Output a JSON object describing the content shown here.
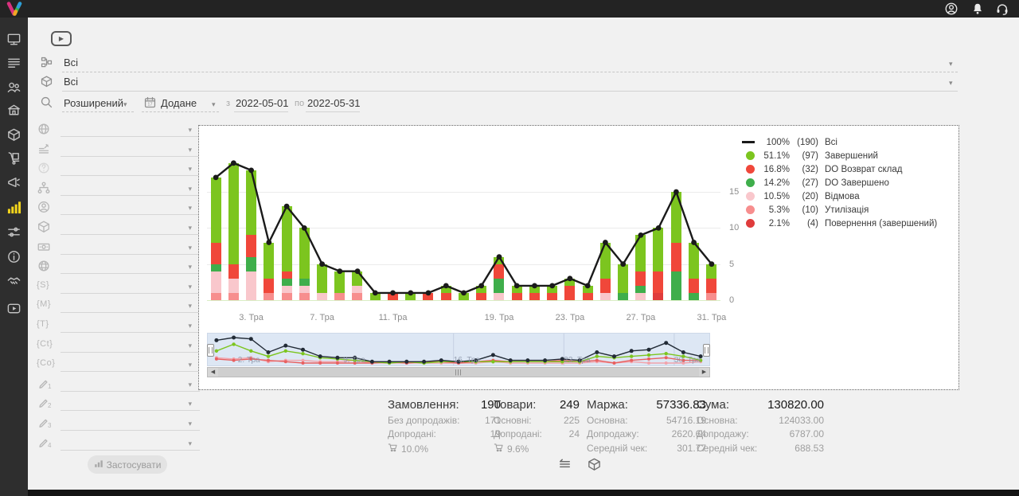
{
  "ui": {
    "play": "▶",
    "caret": "▾",
    "scroll_left": "◀",
    "scroll_right": "▶",
    "grip": "|||"
  },
  "topbar": {
    "icons": [
      "user",
      "notifications-bell",
      "support-headset"
    ]
  },
  "sidebar": {
    "items": [
      "dashboard-monitor",
      "orders-list",
      "customers",
      "store",
      "products-box",
      "supply-cart",
      "marketing-megaphone",
      "analytics-chart",
      "settings-sliders",
      "info",
      "partners-handshake",
      "video-tutorials"
    ],
    "active": "analytics-chart"
  },
  "filters": {
    "category": {
      "value": "Всі"
    },
    "product": {
      "value": "Всі"
    },
    "mode": {
      "value": "Розширений"
    },
    "date_field": {
      "value": "Додане"
    },
    "from_label": "з",
    "date_from": "2022-05-01",
    "to_label": "по",
    "date_to": "2022-05-31",
    "apply_label": "Застосувати",
    "side_rows": [
      {
        "icon": "globe"
      },
      {
        "icon": "stats-lines"
      },
      {
        "icon": "question"
      },
      {
        "icon": "sitemap"
      },
      {
        "icon": "person"
      },
      {
        "icon": "cube"
      },
      {
        "icon": "money"
      },
      {
        "icon": "web"
      },
      {
        "icon": "token",
        "text": "{S}"
      },
      {
        "icon": "token",
        "text": "{M}"
      },
      {
        "icon": "token",
        "text": "{T}"
      },
      {
        "icon": "token",
        "text": "{Ct}"
      },
      {
        "icon": "token",
        "text": "{Co}"
      },
      {
        "icon": "pencil",
        "sub": "1"
      },
      {
        "icon": "pencil",
        "sub": "2"
      },
      {
        "icon": "pencil",
        "sub": "3"
      },
      {
        "icon": "pencil",
        "sub": "4"
      }
    ]
  },
  "chart_data": {
    "type": "stacked-bar+line",
    "title": "",
    "y_ticks": [
      0,
      5,
      10,
      15
    ],
    "y_max": 23.5,
    "x_tick_labels": [
      "3. Тра",
      "7. Тра",
      "11. Тра",
      "19. Тра",
      "23. Тра",
      "27. Тра",
      "31. Тра"
    ],
    "colors": {
      "line": "#1a1a1a",
      "z": "#7cc51f",
      "r": "#f0473a",
      "d": "#3fae4b",
      "p": "#f9c7cc",
      "u": "#f78e8e",
      "n": "#e03c3c"
    },
    "legend": [
      {
        "swatch": "line",
        "color": "#1a1a1a",
        "pct": "100%",
        "count": "(190)",
        "label": "Всі"
      },
      {
        "swatch": "dot",
        "color": "#7cc51f",
        "pct": "51.1%",
        "count": "(97)",
        "label": "Завершений"
      },
      {
        "swatch": "dot",
        "color": "#f0473a",
        "pct": "16.8%",
        "count": "(32)",
        "label": "DO Возврат склад"
      },
      {
        "swatch": "dot",
        "color": "#3fae4b",
        "pct": "14.2%",
        "count": "(27)",
        "label": "DO Завершено"
      },
      {
        "swatch": "dot",
        "color": "#f9c7cc",
        "pct": "10.5%",
        "count": "(20)",
        "label": "Відмова"
      },
      {
        "swatch": "dot",
        "color": "#f78e8e",
        "pct": "5.3%",
        "count": "(10)",
        "label": "Утилізація"
      },
      {
        "swatch": "dot",
        "color": "#e03c3c",
        "pct": "2.1%",
        "count": "(4)",
        "label": "Повернення (завершений)"
      }
    ],
    "days": [
      {
        "t": 17,
        "s": {
          "u": 1,
          "p": 3,
          "d": 1,
          "r": 3,
          "z": 9
        },
        "tick": ""
      },
      {
        "t": 19,
        "s": {
          "u": 1,
          "p": 2,
          "r": 2,
          "z": 14
        },
        "tick": ""
      },
      {
        "t": 18,
        "s": {
          "p": 4,
          "d": 2,
          "r": 3,
          "z": 9
        },
        "tick": "3. Тра"
      },
      {
        "t": 8,
        "s": {
          "u": 1,
          "r": 2,
          "z": 5
        },
        "tick": ""
      },
      {
        "t": 13,
        "s": {
          "u": 1,
          "p": 1,
          "d": 1,
          "r": 1,
          "z": 9
        },
        "tick": ""
      },
      {
        "t": 10,
        "s": {
          "u": 1,
          "p": 1,
          "d": 1,
          "z": 7
        },
        "tick": ""
      },
      {
        "t": 5,
        "s": {
          "p": 1,
          "z": 4
        },
        "tick": "7. Тра"
      },
      {
        "t": 4,
        "s": {
          "u": 1,
          "z": 3
        },
        "tick": ""
      },
      {
        "t": 4,
        "s": {
          "u": 1,
          "p": 1,
          "z": 2
        },
        "tick": ""
      },
      {
        "t": 1,
        "s": {
          "z": 1
        },
        "tick": ""
      },
      {
        "t": 1,
        "s": {
          "r": 1
        },
        "tick": "11. Тра"
      },
      {
        "t": 1,
        "s": {
          "z": 1
        },
        "tick": ""
      },
      {
        "t": 1,
        "s": {
          "r": 1
        },
        "tick": ""
      },
      {
        "t": 2,
        "s": {
          "r": 1,
          "z": 1
        },
        "tick": ""
      },
      {
        "t": 1,
        "s": {
          "z": 1
        },
        "tick": ""
      },
      {
        "t": 2,
        "s": {
          "r": 1,
          "z": 1
        },
        "tick": ""
      },
      {
        "t": 6,
        "s": {
          "p": 1,
          "d": 2,
          "r": 2,
          "z": 1
        },
        "tick": "19. Тра"
      },
      {
        "t": 2,
        "s": {
          "r": 1,
          "z": 1
        },
        "tick": ""
      },
      {
        "t": 2,
        "s": {
          "r": 1,
          "z": 1
        },
        "tick": ""
      },
      {
        "t": 2,
        "s": {
          "r": 1,
          "z": 1
        },
        "tick": ""
      },
      {
        "t": 3,
        "s": {
          "r": 2,
          "z": 1
        },
        "tick": "23. Тра"
      },
      {
        "t": 2,
        "s": {
          "r": 1,
          "z": 1
        },
        "tick": ""
      },
      {
        "t": 8,
        "s": {
          "p": 1,
          "r": 2,
          "z": 5
        },
        "tick": ""
      },
      {
        "t": 5,
        "s": {
          "d": 1,
          "z": 4
        },
        "tick": ""
      },
      {
        "t": 9,
        "s": {
          "p": 1,
          "d": 1,
          "r": 2,
          "z": 5
        },
        "tick": "27. Тра"
      },
      {
        "t": 10,
        "s": {
          "n": 1,
          "r": 3,
          "z": 6
        },
        "tick": ""
      },
      {
        "t": 15,
        "s": {
          "d": 4,
          "r": 4,
          "z": 7
        },
        "tick": ""
      },
      {
        "t": 8,
        "s": {
          "d": 1,
          "r": 2,
          "z": 5
        },
        "tick": ""
      },
      {
        "t": 5,
        "s": {
          "u": 1,
          "r": 2,
          "z": 2
        },
        "tick": "31. Тра"
      }
    ],
    "navigator": {
      "labels": [
        "2. Тра",
        "9. Тра",
        "16. Тра",
        "23. Тра",
        "30. Тра"
      ],
      "fractions": [
        0.06,
        0.27,
        0.49,
        0.71,
        0.93
      ]
    }
  },
  "summary": {
    "cards": [
      {
        "title": "Замовлення:",
        "value": "190",
        "rows": [
          {
            "l": "Без допродажів:",
            "v": "171"
          },
          {
            "l": "Допродані:",
            "v": "19"
          }
        ],
        "cart": "10.0%"
      },
      {
        "title": "Товари:",
        "value": "249",
        "rows": [
          {
            "l": "Основні:",
            "v": "225"
          },
          {
            "l": "Допродані:",
            "v": "24"
          }
        ],
        "cart": "9.6%"
      },
      {
        "title": "Маржа:",
        "value": "57336.83",
        "rows": [
          {
            "l": "Основна:",
            "v": "54716.19"
          },
          {
            "l": "Допродажу:",
            "v": "2620.64"
          },
          {
            "l": "Середній чек:",
            "v": "301.77"
          }
        ]
      },
      {
        "title": "Сума:",
        "value": "130820.00",
        "rows": [
          {
            "l": "Основна:",
            "v": "124033.00"
          },
          {
            "l": "Допродажу:",
            "v": "6787.00"
          },
          {
            "l": "Середній чек:",
            "v": "688.53"
          }
        ]
      }
    ]
  }
}
